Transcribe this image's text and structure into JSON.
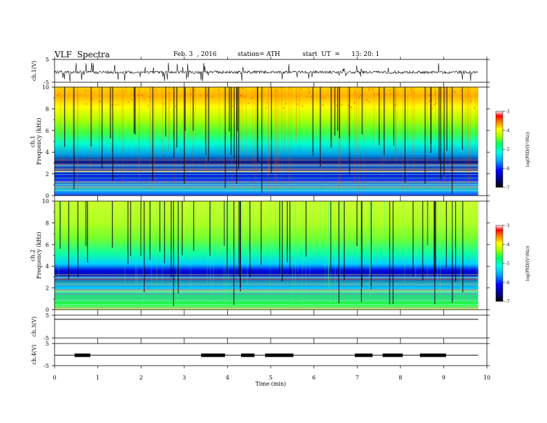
{
  "header": {
    "title": "VLF  Spectra",
    "date": "Feb. 3  , 2016",
    "station": "station= ATH",
    "start_label": "start  UT  =",
    "start_time": "13: 20: 1"
  },
  "colors": {
    "trace": "#000000",
    "axis": "#000000",
    "frame": "#000000"
  },
  "chart_data": [
    {
      "type": "line",
      "ylabel": "ch.1(V)",
      "ylim": [
        -5,
        5
      ],
      "yticks": [
        "5",
        "-5"
      ],
      "series": [
        {
          "values": "noisy trace near 0 V with frequent negative spikes"
        }
      ]
    },
    {
      "type": "heatmap",
      "ylabel_lines": [
        "ch.1",
        "Frequency  (kHz)"
      ],
      "ylim": [
        0,
        10
      ],
      "yticks": [
        "0",
        "2",
        "4",
        "6",
        "8",
        "10"
      ],
      "xlim": [
        0,
        10
      ],
      "colorbar": {
        "label": "log(PSD/(V²/Hz))",
        "range": [
          -7,
          -3
        ],
        "ticks": [
          "-3",
          "-4",
          "-5",
          "-6",
          "-7"
        ]
      }
    },
    {
      "type": "heatmap",
      "ylabel_lines": [
        "ch.2",
        "Frequency  (kHz)"
      ],
      "ylim": [
        0,
        10
      ],
      "yticks": [
        "0",
        "2",
        "4",
        "6",
        "8",
        "10"
      ],
      "xlim": [
        0,
        10
      ],
      "colorbar": {
        "label": "log(PSD/(V²/Hz))",
        "range": [
          -7,
          -3
        ],
        "ticks": [
          "-3",
          "-4",
          "-5",
          "-6",
          "-7"
        ]
      }
    },
    {
      "type": "line",
      "ylabel": "ch.3(V)",
      "ylim": [
        -5,
        5
      ],
      "yticks": [
        "5",
        "-5"
      ]
    },
    {
      "type": "line",
      "ylabel": "ch.4(V)",
      "ylim": [
        -5,
        5
      ],
      "yticks": [
        "5",
        "-5"
      ]
    }
  ],
  "xaxis": {
    "label": "Time  (min)",
    "ticks": [
      "0",
      "1",
      "2",
      "3",
      "4",
      "5",
      "6",
      "7",
      "8",
      "9",
      "10"
    ],
    "range": [
      0,
      10
    ],
    "data_end": 9.8
  }
}
